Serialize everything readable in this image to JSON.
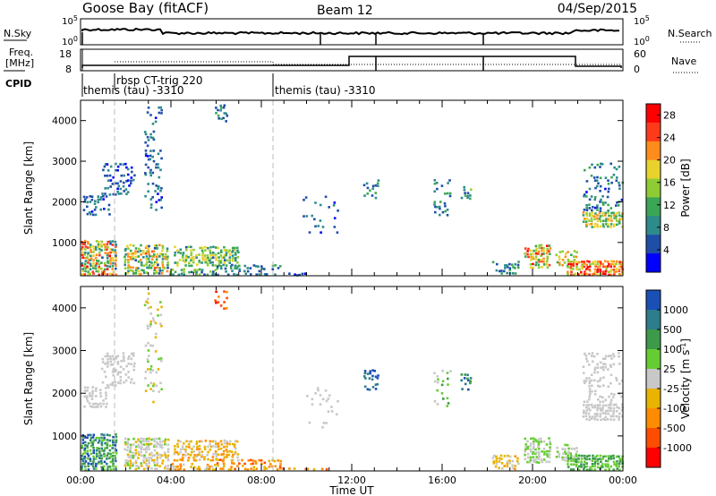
{
  "header": {
    "site": "Goose Bay (fitACF)",
    "beam": "Beam 12",
    "date": "04/Sep/2015"
  },
  "nsky_panel": {
    "label": "N.Sky",
    "label_right": "N.Search",
    "tick_top": "10^5",
    "tick_bottom": "10^0",
    "tick_top_right": "10^5",
    "tick_bottom_right": "10^0"
  },
  "freq_panel": {
    "label_line1": "Freq.",
    "label_line2": "[MHz]",
    "label_right": "Nave",
    "tick_left_top": "18",
    "tick_left_bottom": "8",
    "tick_right_top": "60",
    "tick_right_bottom": "0"
  },
  "cpid_panel": {
    "label": "CPID",
    "segments": [
      "themis (tau) -3310",
      "rbsp CT-trig 220",
      "themis (tau) -3310"
    ],
    "segment_bounds_hours": [
      0,
      1.5,
      8.5,
      24
    ]
  },
  "chart_data": [
    {
      "type": "heatmap",
      "ylabel": "Slant Range [km]",
      "yticks": [
        "1000",
        "2000",
        "3000",
        "4000"
      ],
      "ylim": [
        180,
        4500
      ],
      "xlim": [
        0,
        24
      ],
      "colorbar": {
        "label": "Power [dB]",
        "ticks": [
          "4",
          "8",
          "12",
          "16",
          "20",
          "24",
          "28"
        ],
        "range": [
          0,
          30
        ],
        "colors": [
          "#0000ff",
          "#1f4ea8",
          "#2e8b8b",
          "#3aa655",
          "#8fcc34",
          "#e8d22e",
          "#ff8c1a",
          "#ff3a1a",
          "#ff0000"
        ]
      },
      "dashed_lines_hours": [
        1.5,
        8.5
      ],
      "scatter_regions": [
        {
          "x0": 0.0,
          "x1": 1.6,
          "y0": 230,
          "y1": 1100,
          "v0": 6,
          "v1": 28,
          "d": 0.85
        },
        {
          "x0": 0.1,
          "x1": 1.3,
          "y0": 1700,
          "y1": 2200,
          "v0": 2,
          "v1": 10,
          "d": 0.45
        },
        {
          "x0": 0.9,
          "x1": 2.4,
          "y0": 2200,
          "y1": 3000,
          "v0": 2,
          "v1": 10,
          "d": 0.4
        },
        {
          "x0": 1.9,
          "x1": 3.9,
          "y0": 250,
          "y1": 1000,
          "v0": 6,
          "v1": 24,
          "d": 0.75
        },
        {
          "x0": 2.8,
          "x1": 3.6,
          "y0": 1800,
          "y1": 4400,
          "v0": 2,
          "v1": 10,
          "d": 0.2
        },
        {
          "x0": 3.9,
          "x1": 6.0,
          "y0": 230,
          "y1": 400,
          "v0": 4,
          "v1": 16,
          "d": 0.55
        },
        {
          "x0": 4.1,
          "x1": 7.0,
          "y0": 450,
          "y1": 950,
          "v0": 6,
          "v1": 20,
          "d": 0.7
        },
        {
          "x0": 5.9,
          "x1": 6.5,
          "y0": 4000,
          "y1": 4450,
          "v0": 4,
          "v1": 12,
          "d": 0.35
        },
        {
          "x0": 6.0,
          "x1": 8.9,
          "y0": 230,
          "y1": 500,
          "v0": 3,
          "v1": 12,
          "d": 0.5
        },
        {
          "x0": 8.9,
          "x1": 11.2,
          "y0": 220,
          "y1": 300,
          "v0": 2,
          "v1": 8,
          "d": 0.3
        },
        {
          "x0": 9.8,
          "x1": 11.4,
          "y0": 1200,
          "y1": 2200,
          "v0": 2,
          "v1": 8,
          "d": 0.12
        },
        {
          "x0": 12.5,
          "x1": 13.2,
          "y0": 2100,
          "y1": 2600,
          "v0": 4,
          "v1": 12,
          "d": 0.3
        },
        {
          "x0": 15.6,
          "x1": 16.4,
          "y0": 1700,
          "y1": 2600,
          "v0": 4,
          "v1": 12,
          "d": 0.25
        },
        {
          "x0": 16.8,
          "x1": 17.3,
          "y0": 2100,
          "y1": 2500,
          "v0": 6,
          "v1": 16,
          "d": 0.55
        },
        {
          "x0": 18.2,
          "x1": 19.4,
          "y0": 250,
          "y1": 600,
          "v0": 4,
          "v1": 14,
          "d": 0.45
        },
        {
          "x0": 19.6,
          "x1": 20.8,
          "y0": 400,
          "y1": 1000,
          "v0": 10,
          "v1": 28,
          "d": 0.7
        },
        {
          "x0": 21.0,
          "x1": 22.0,
          "y0": 450,
          "y1": 850,
          "v0": 8,
          "v1": 24,
          "d": 0.6
        },
        {
          "x0": 21.5,
          "x1": 24.0,
          "y0": 230,
          "y1": 600,
          "v0": 14,
          "v1": 30,
          "d": 0.85
        },
        {
          "x0": 22.2,
          "x1": 24.0,
          "y0": 1400,
          "y1": 1800,
          "v0": 10,
          "v1": 22,
          "d": 0.85
        },
        {
          "x0": 22.2,
          "x1": 24.0,
          "y0": 1800,
          "y1": 3000,
          "v0": 3,
          "v1": 12,
          "d": 0.3
        }
      ]
    },
    {
      "type": "heatmap",
      "ylabel": "Slant Range [km]",
      "xlabel": "Time UT",
      "xticks": [
        "00:00",
        "04:00",
        "08:00",
        "12:00",
        "16:00",
        "20:00",
        "00:00"
      ],
      "xtick_hours": [
        0,
        4,
        8,
        12,
        16,
        20,
        24
      ],
      "yticks": [
        "1000",
        "2000",
        "3000",
        "4000"
      ],
      "ylim": [
        180,
        4500
      ],
      "xlim": [
        0,
        24
      ],
      "colorbar": {
        "label": "Velocity [m s^-1]",
        "ticks": [
          "1000",
          "500",
          "100",
          "25",
          "-25",
          "-100",
          "-500",
          "-1000"
        ],
        "colors": [
          "#1a4fb5",
          "#2e7d8c",
          "#3c9a4a",
          "#66cc33",
          "#c8c8c8",
          "#e8b400",
          "#ff8c00",
          "#ff4d00",
          "#ff0000"
        ]
      },
      "dashed_lines_hours": [
        1.5,
        8.5
      ],
      "scatter_regions": [
        {
          "x0": 0.0,
          "x1": 1.6,
          "y0": 230,
          "y1": 1100,
          "v0": 0,
          "v1": 3,
          "d": 0.8
        },
        {
          "x0": 0.1,
          "x1": 1.3,
          "y0": 1700,
          "y1": 2200,
          "v0": 4,
          "v1": 4,
          "d": 0.45
        },
        {
          "x0": 0.9,
          "x1": 2.4,
          "y0": 2200,
          "y1": 3000,
          "v0": 4,
          "v1": 4,
          "d": 0.4
        },
        {
          "x0": 1.9,
          "x1": 3.9,
          "y0": 250,
          "y1": 1000,
          "v0": 3,
          "v1": 5,
          "d": 0.75
        },
        {
          "x0": 2.8,
          "x1": 3.6,
          "y0": 1800,
          "y1": 4400,
          "v0": 3,
          "v1": 5,
          "d": 0.2
        },
        {
          "x0": 3.9,
          "x1": 6.0,
          "y0": 230,
          "y1": 400,
          "v0": 4,
          "v1": 6,
          "d": 0.55
        },
        {
          "x0": 4.1,
          "x1": 7.0,
          "y0": 450,
          "y1": 950,
          "v0": 4,
          "v1": 6,
          "d": 0.7
        },
        {
          "x0": 5.9,
          "x1": 6.5,
          "y0": 4000,
          "y1": 4450,
          "v0": 6,
          "v1": 8,
          "d": 0.35
        },
        {
          "x0": 6.0,
          "x1": 8.9,
          "y0": 230,
          "y1": 500,
          "v0": 5,
          "v1": 7,
          "d": 0.5
        },
        {
          "x0": 8.9,
          "x1": 11.2,
          "y0": 220,
          "y1": 300,
          "v0": 5,
          "v1": 7,
          "d": 0.3
        },
        {
          "x0": 9.8,
          "x1": 11.4,
          "y0": 1200,
          "y1": 2200,
          "v0": 4,
          "v1": 4,
          "d": 0.12
        },
        {
          "x0": 12.5,
          "x1": 13.2,
          "y0": 2100,
          "y1": 2600,
          "v0": 0,
          "v1": 1,
          "d": 0.3
        },
        {
          "x0": 15.6,
          "x1": 16.4,
          "y0": 1700,
          "y1": 2600,
          "v0": 2,
          "v1": 4,
          "d": 0.25
        },
        {
          "x0": 16.8,
          "x1": 17.3,
          "y0": 2100,
          "y1": 2500,
          "v0": 0,
          "v1": 2,
          "d": 0.55
        },
        {
          "x0": 18.2,
          "x1": 19.4,
          "y0": 250,
          "y1": 600,
          "v0": 4,
          "v1": 6,
          "d": 0.45
        },
        {
          "x0": 19.6,
          "x1": 20.8,
          "y0": 400,
          "y1": 1000,
          "v0": 3,
          "v1": 4,
          "d": 0.7
        },
        {
          "x0": 21.0,
          "x1": 22.0,
          "y0": 450,
          "y1": 850,
          "v0": 3,
          "v1": 4,
          "d": 0.6
        },
        {
          "x0": 21.5,
          "x1": 24.0,
          "y0": 230,
          "y1": 600,
          "v0": 2,
          "v1": 3,
          "d": 0.85
        },
        {
          "x0": 22.2,
          "x1": 24.0,
          "y0": 1400,
          "y1": 1800,
          "v0": 4,
          "v1": 4,
          "d": 0.85
        },
        {
          "x0": 22.2,
          "x1": 24.0,
          "y0": 1800,
          "y1": 3000,
          "v0": 4,
          "v1": 4,
          "d": 0.3
        }
      ]
    }
  ]
}
